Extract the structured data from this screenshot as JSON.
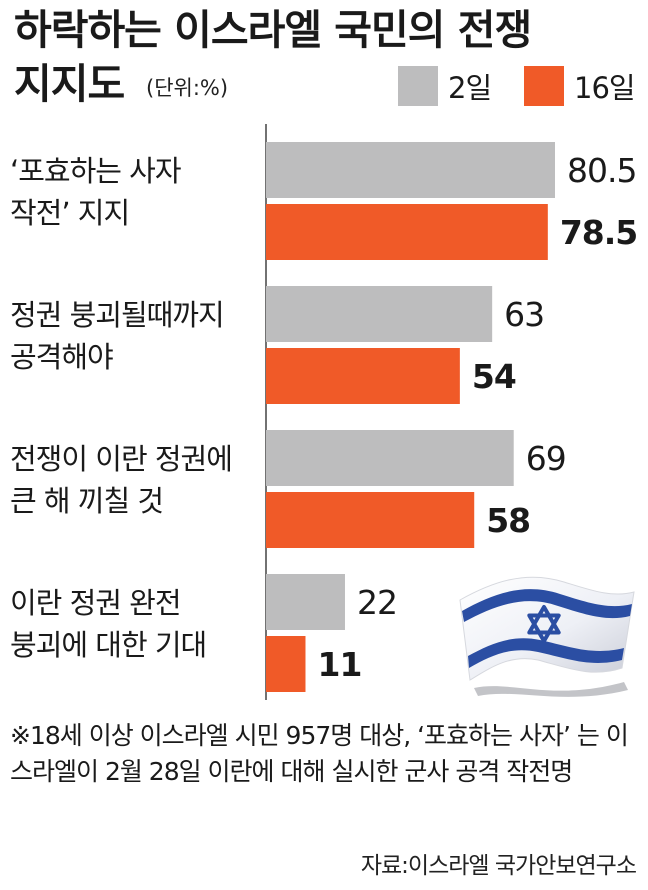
{
  "title_line1": "하락하는 이스라엘 국민의 전쟁",
  "title_line2": "지지도",
  "unit": "(단위:%)",
  "colors": {
    "series_1": "#bdbdbe",
    "series_2": "#f05a28",
    "axis": "#444444",
    "flag_blue": "#2b4ea3"
  },
  "chart_data": {
    "type": "bar",
    "orientation": "horizontal",
    "categories": [
      "‘포효하는 사자\n작전’ 지지",
      "정권 붕괴될때까지\n공격해야",
      "전쟁이 이란 정권에\n큰 해 끼칠 것",
      "이란 정권 완전\n붕괴에 대한 기대"
    ],
    "series": [
      {
        "name": "2일",
        "values": [
          80.5,
          63,
          69,
          22
        ]
      },
      {
        "name": "16일",
        "values": [
          78.5,
          54,
          58,
          11
        ]
      }
    ],
    "value_labels": [
      [
        "80.5",
        "63",
        "69",
        "22"
      ],
      [
        "78.5",
        "54",
        "58",
        "11"
      ]
    ],
    "xlim": [
      0,
      80.5
    ],
    "legend_position": "top-right",
    "grid": false
  },
  "footnote": "※18세 이상 이스라엘 시민 957명 대상, ‘포효하는 사자’ 는 이스라엘이 2월 28일 이란에 대해 실시한 군사 공격 작전명",
  "source": "자료:이스라엘 국가안보연구소",
  "flag_icon": "israel-flag-icon"
}
